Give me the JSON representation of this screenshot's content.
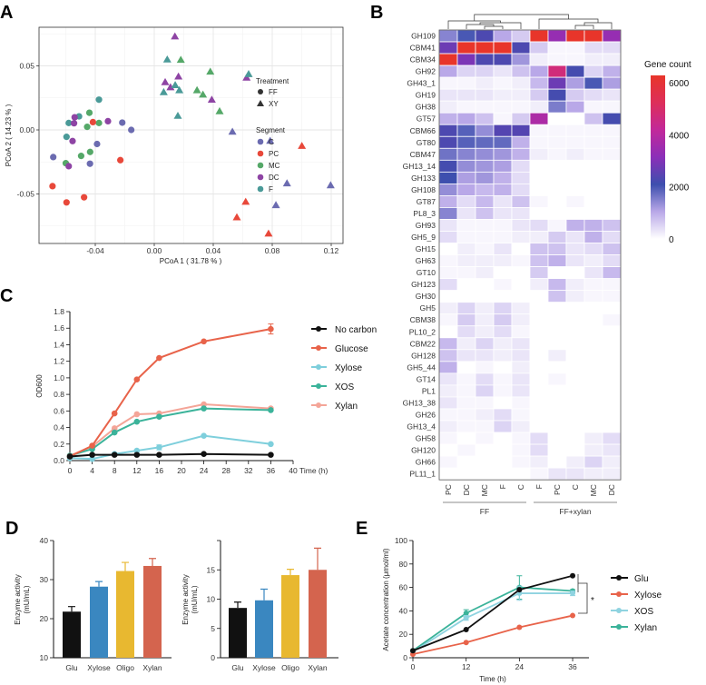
{
  "panel_labels": [
    "A",
    "B",
    "C",
    "D",
    "E"
  ],
  "chart_data": [
    {
      "panel": "A",
      "type": "scatter",
      "xlabel": "PCoA 1 ( 31.78 % )",
      "ylabel": "PCoA 2 ( 14.23 % )",
      "xticks": [
        "-0.04",
        "0.00",
        "0.04",
        "0.08",
        "0.12"
      ],
      "yticks": [
        "-0.05",
        "0.00",
        "0.05"
      ],
      "xlim": [
        -0.075,
        0.128
      ],
      "ylim": [
        -0.088,
        0.08
      ],
      "grid": true,
      "legend_placement": "right",
      "treatment_title": "Treatment",
      "treatments": [
        {
          "name": "FF",
          "shape": "circle"
        },
        {
          "name": "XY",
          "shape": "triangle"
        }
      ],
      "segment_title": "Segment",
      "segments": [
        {
          "name": "C",
          "color": "#6b6bb0"
        },
        {
          "name": "PC",
          "color": "#e8483a"
        },
        {
          "name": "MC",
          "color": "#55a868"
        },
        {
          "name": "DC",
          "color": "#8e44a4"
        },
        {
          "name": "F",
          "color": "#4a9a98"
        }
      ],
      "points": [
        {
          "s": "F",
          "t": "FF",
          "x": -0.0375,
          "y": 0.0236
        },
        {
          "s": "F",
          "t": "FF",
          "x": -0.058,
          "y": 0.0054
        },
        {
          "s": "F",
          "t": "FF",
          "x": -0.051,
          "y": 0.0106
        },
        {
          "s": "F",
          "t": "FF",
          "x": -0.0595,
          "y": -0.0054
        },
        {
          "s": "MC",
          "t": "FF",
          "x": -0.044,
          "y": 0.0134
        },
        {
          "s": "MC",
          "t": "FF",
          "x": -0.0455,
          "y": 0.0024
        },
        {
          "s": "MC",
          "t": "FF",
          "x": -0.0375,
          "y": 0.0054
        },
        {
          "s": "MC",
          "t": "FF",
          "x": -0.0435,
          "y": -0.0172
        },
        {
          "s": "MC",
          "t": "FF",
          "x": -0.0496,
          "y": -0.0203
        },
        {
          "s": "MC",
          "t": "FF",
          "x": -0.06,
          "y": -0.026
        },
        {
          "s": "DC",
          "t": "FF",
          "x": -0.054,
          "y": 0.0099
        },
        {
          "s": "DC",
          "t": "FF",
          "x": -0.0544,
          "y": 0.0052
        },
        {
          "s": "DC",
          "t": "FF",
          "x": -0.0314,
          "y": 0.0068
        },
        {
          "s": "DC",
          "t": "FF",
          "x": -0.0554,
          "y": -0.0087
        },
        {
          "s": "DC",
          "t": "FF",
          "x": -0.058,
          "y": -0.0283
        },
        {
          "s": "C",
          "t": "FF",
          "x": -0.0217,
          "y": 0.0057
        },
        {
          "s": "C",
          "t": "FF",
          "x": -0.0156,
          "y": 0.0
        },
        {
          "s": "C",
          "t": "FF",
          "x": -0.0388,
          "y": -0.011
        },
        {
          "s": "C",
          "t": "FF",
          "x": -0.0436,
          "y": -0.0264
        },
        {
          "s": "C",
          "t": "FF",
          "x": -0.0685,
          "y": -0.0212
        },
        {
          "s": "PC",
          "t": "FF",
          "x": -0.0416,
          "y": 0.0061
        },
        {
          "s": "PC",
          "t": "FF",
          "x": -0.023,
          "y": -0.0236
        },
        {
          "s": "PC",
          "t": "FF",
          "x": -0.069,
          "y": -0.0439
        },
        {
          "s": "PC",
          "t": "FF",
          "x": -0.0595,
          "y": -0.0566
        },
        {
          "s": "PC",
          "t": "FF",
          "x": -0.0476,
          "y": -0.0526
        },
        {
          "s": "DC",
          "t": "XY",
          "x": 0.014,
          "y": 0.073
        },
        {
          "s": "DC",
          "t": "XY",
          "x": 0.0074,
          "y": 0.0373
        },
        {
          "s": "DC",
          "t": "XY",
          "x": 0.011,
          "y": 0.0333
        },
        {
          "s": "DC",
          "t": "XY",
          "x": 0.0164,
          "y": 0.0417
        },
        {
          "s": "DC",
          "t": "XY",
          "x": 0.039,
          "y": 0.0236
        },
        {
          "s": "DC",
          "t": "XY",
          "x": 0.0626,
          "y": 0.0408
        },
        {
          "s": "F",
          "t": "XY",
          "x": 0.0088,
          "y": 0.055
        },
        {
          "s": "F",
          "t": "XY",
          "x": 0.0064,
          "y": 0.0295
        },
        {
          "s": "F",
          "t": "XY",
          "x": 0.0142,
          "y": 0.035
        },
        {
          "s": "F",
          "t": "XY",
          "x": 0.017,
          "y": 0.031
        },
        {
          "s": "F",
          "t": "XY",
          "x": 0.016,
          "y": 0.011
        },
        {
          "s": "F",
          "t": "XY",
          "x": 0.064,
          "y": 0.0436
        },
        {
          "s": "MC",
          "t": "XY",
          "x": 0.018,
          "y": 0.0547
        },
        {
          "s": "MC",
          "t": "XY",
          "x": 0.038,
          "y": 0.0455
        },
        {
          "s": "MC",
          "t": "XY",
          "x": 0.029,
          "y": 0.031
        },
        {
          "s": "MC",
          "t": "XY",
          "x": 0.033,
          "y": 0.0276
        },
        {
          "s": "MC",
          "t": "XY",
          "x": 0.0443,
          "y": 0.0146
        },
        {
          "s": "C",
          "t": "XY",
          "x": 0.053,
          "y": -0.0014
        },
        {
          "s": "C",
          "t": "XY",
          "x": 0.0786,
          "y": -0.0085
        },
        {
          "s": "C",
          "t": "XY",
          "x": 0.09,
          "y": -0.0417
        },
        {
          "s": "C",
          "t": "XY",
          "x": 0.0825,
          "y": -0.0587
        },
        {
          "s": "C",
          "t": "XY",
          "x": 0.1196,
          "y": -0.0432
        },
        {
          "s": "PC",
          "t": "XY",
          "x": 0.1001,
          "y": -0.0125
        },
        {
          "s": "PC",
          "t": "XY",
          "x": 0.062,
          "y": -0.0561
        },
        {
          "s": "PC",
          "t": "XY",
          "x": 0.056,
          "y": -0.0682
        },
        {
          "s": "PC",
          "t": "XY",
          "x": 0.0775,
          "y": -0.0809
        }
      ]
    },
    {
      "panel": "B",
      "type": "heatmap",
      "colorbar_title": "Gene count",
      "colorbar_ticks": [
        "6000",
        "4000",
        "2000",
        "0"
      ],
      "colorscale": [
        [
          0,
          "#ffffff"
        ],
        [
          1000,
          "#b9a8e8"
        ],
        [
          2000,
          "#3d4fae"
        ],
        [
          3000,
          "#8b2fb8"
        ],
        [
          4000,
          "#c2289a"
        ],
        [
          5000,
          "#dd2f5a"
        ],
        [
          6000,
          "#e8352a"
        ]
      ],
      "columns": [
        "PC",
        "DC",
        "MC",
        "F",
        "C",
        "F",
        "PC",
        "C",
        "MC",
        "DC"
      ],
      "groups": [
        {
          "label": "FF",
          "span": 5
        },
        {
          "label": "FF+xylan",
          "span": 5
        }
      ],
      "rows": [
        "GH109",
        "CBM41",
        "CBM34",
        "GH92",
        "GH43_1",
        "GH19",
        "GH38",
        "GT57",
        "CBM66",
        "GT80",
        "CBM47",
        "GH13_14",
        "GH133",
        "GH108",
        "GT87",
        "PL8_3",
        "GH93",
        "GH5_9",
        "GH15",
        "GH63",
        "GT10",
        "GH123",
        "GH30",
        "GH5",
        "CBM38",
        "PL10_2",
        "CBM22",
        "GH128",
        "GH5_44",
        "GT14",
        "PL1",
        "GH13_38",
        "GH26",
        "GH13_4",
        "GH58",
        "GH120",
        "GH66",
        "PL11_1"
      ],
      "values": [
        [
          1400,
          1900,
          2200,
          1000,
          600,
          6000,
          3200,
          6000,
          6000,
          3200
        ],
        [
          2600,
          6000,
          6000,
          6000,
          2200,
          600,
          100,
          100,
          400,
          400
        ],
        [
          6000,
          2800,
          2200,
          2200,
          1200,
          200,
          100,
          100,
          200,
          200
        ],
        [
          1000,
          500,
          500,
          300,
          700,
          1000,
          4500,
          2100,
          500,
          900
        ],
        [
          100,
          100,
          200,
          100,
          200,
          800,
          2600,
          1100,
          1900,
          1100
        ],
        [
          300,
          300,
          300,
          200,
          200,
          600,
          2100,
          600,
          400,
          300
        ],
        [
          200,
          100,
          100,
          100,
          100,
          200,
          1500,
          1000,
          100,
          100
        ],
        [
          900,
          1000,
          700,
          100,
          600,
          3600,
          0,
          0,
          700,
          2100
        ],
        [
          2200,
          1800,
          1300,
          2300,
          2300,
          100,
          100,
          100,
          100,
          100
        ],
        [
          2200,
          1800,
          1700,
          1700,
          900,
          100,
          100,
          100,
          100,
          100
        ],
        [
          1600,
          1400,
          1300,
          1200,
          900,
          200,
          100,
          200,
          100,
          100
        ],
        [
          2100,
          1300,
          1200,
          1100,
          400,
          0,
          0,
          0,
          0,
          0
        ],
        [
          2000,
          1100,
          1200,
          900,
          400,
          0,
          0,
          0,
          0,
          0
        ],
        [
          1300,
          1000,
          800,
          900,
          400,
          0,
          0,
          0,
          0,
          0
        ],
        [
          900,
          400,
          800,
          300,
          700,
          100,
          0,
          100,
          0,
          0
        ],
        [
          1400,
          300,
          700,
          300,
          300,
          0,
          0,
          0,
          0,
          0
        ],
        [
          300,
          100,
          100,
          100,
          300,
          400,
          100,
          900,
          900,
          700
        ],
        [
          400,
          100,
          100,
          100,
          200,
          200,
          600,
          300,
          900,
          400
        ],
        [
          0,
          200,
          100,
          300,
          0,
          700,
          700,
          300,
          400,
          700
        ],
        [
          100,
          200,
          200,
          200,
          100,
          700,
          900,
          300,
          200,
          400
        ],
        [
          100,
          100,
          200,
          0,
          0,
          600,
          0,
          0,
          300,
          800
        ],
        [
          400,
          0,
          0,
          100,
          0,
          200,
          800,
          200,
          100,
          100
        ],
        [
          0,
          0,
          0,
          0,
          0,
          0,
          700,
          200,
          100,
          100
        ],
        [
          200,
          500,
          200,
          500,
          200,
          0,
          0,
          0,
          0,
          0
        ],
        [
          100,
          600,
          200,
          600,
          200,
          0,
          0,
          0,
          0,
          100
        ],
        [
          0,
          400,
          200,
          400,
          100,
          0,
          0,
          0,
          0,
          0
        ],
        [
          800,
          200,
          500,
          200,
          300,
          0,
          0,
          0,
          0,
          0
        ],
        [
          700,
          300,
          300,
          200,
          300,
          0,
          200,
          0,
          0,
          0
        ],
        [
          900,
          0,
          100,
          0,
          200,
          0,
          0,
          0,
          0,
          0
        ],
        [
          300,
          100,
          400,
          100,
          300,
          0,
          100,
          0,
          0,
          0
        ],
        [
          200,
          100,
          500,
          100,
          300,
          0,
          0,
          0,
          0,
          0
        ],
        [
          300,
          100,
          100,
          0,
          100,
          0,
          0,
          0,
          0,
          0
        ],
        [
          100,
          100,
          200,
          400,
          100,
          0,
          0,
          0,
          0,
          0
        ],
        [
          200,
          100,
          100,
          500,
          200,
          0,
          0,
          0,
          0,
          0
        ],
        [
          100,
          0,
          100,
          0,
          100,
          400,
          0,
          0,
          200,
          400
        ],
        [
          0,
          100,
          0,
          0,
          100,
          400,
          0,
          0,
          200,
          300
        ],
        [
          100,
          0,
          0,
          0,
          100,
          200,
          0,
          200,
          500,
          200
        ],
        [
          0,
          0,
          0,
          0,
          0,
          100,
          300,
          300,
          200,
          200
        ]
      ]
    },
    {
      "panel": "C",
      "type": "line",
      "xlabel": "Time (h)",
      "ylabel": "OD600",
      "xlim": [
        0,
        40
      ],
      "ylim": [
        0,
        1.8
      ],
      "xticks": [
        "0",
        "4",
        "8",
        "12",
        "16",
        "20",
        "24",
        "28",
        "32",
        "36",
        "40"
      ],
      "yticks": [
        "0.0",
        "0.2",
        "0.4",
        "0.6",
        "0.8",
        "1.0",
        "1.2",
        "1.4",
        "1.6",
        "1.8"
      ],
      "x": [
        0,
        4,
        8,
        12,
        16,
        24,
        36
      ],
      "legend_placement": "right",
      "series": [
        {
          "name": "No carbon",
          "color": "#111111",
          "values": [
            0.05,
            0.07,
            0.07,
            0.07,
            0.07,
            0.08,
            0.07
          ]
        },
        {
          "name": "Glucose",
          "color": "#e8634a",
          "values": [
            0.05,
            0.18,
            0.57,
            0.98,
            1.24,
            1.44,
            1.59
          ],
          "error": [
            0,
            0,
            0,
            0,
            0,
            0,
            0.06
          ]
        },
        {
          "name": "Xylose",
          "color": "#7ecfdc",
          "values": [
            0.03,
            0.02,
            0.08,
            0.12,
            0.16,
            0.3,
            0.2
          ],
          "error": [
            0,
            0,
            0,
            0,
            0.03,
            0,
            0
          ]
        },
        {
          "name": "XOS",
          "color": "#3bb39a",
          "values": [
            0.06,
            0.14,
            0.34,
            0.47,
            0.53,
            0.63,
            0.61
          ]
        },
        {
          "name": "Xylan",
          "color": "#f4a598",
          "values": [
            0.06,
            0.17,
            0.39,
            0.56,
            0.57,
            0.68,
            0.63
          ]
        }
      ]
    },
    {
      "panel": "D",
      "type": "bar",
      "ylabel": [
        "Enzyme activity",
        "(mU/mL)"
      ],
      "ylim": [
        10,
        40
      ],
      "yticks": [
        "10",
        "20",
        "30",
        "40"
      ],
      "categories": [
        "Glu",
        "Xylose",
        "Oligo",
        "Xylan"
      ],
      "colors": [
        "#111111",
        "#3a87c0",
        "#e8b830",
        "#d4644e"
      ],
      "values": [
        21.8,
        28.2,
        32.2,
        33.5
      ],
      "error": [
        1.3,
        1.3,
        2.2,
        1.9
      ]
    },
    {
      "panel": "D",
      "type": "bar",
      "ylabel": [
        "Enzyme activity",
        "(mU/mL)"
      ],
      "ylim": [
        0,
        20
      ],
      "yticks": [
        "0",
        "5",
        "10",
        "15",
        ""
      ],
      "categories": [
        "Glu",
        "Xylose",
        "Oligo",
        "Xylan"
      ],
      "colors": [
        "#111111",
        "#3a87c0",
        "#e8b830",
        "#d4644e"
      ],
      "values": [
        8.5,
        9.8,
        14.1,
        15.0
      ],
      "error": [
        1.0,
        1.9,
        1.0,
        3.7
      ]
    },
    {
      "panel": "E",
      "type": "line",
      "xlabel": "Time (h)",
      "ylabel": "Acetate concentration (μmol/ml)",
      "xlim": [
        0,
        36
      ],
      "ylim": [
        0,
        100
      ],
      "xticks": [
        "0",
        "12",
        "24",
        "36"
      ],
      "yticks": [
        "0",
        "20",
        "40",
        "60",
        "80",
        "100"
      ],
      "x": [
        0,
        12,
        24,
        36
      ],
      "legend_placement": "right",
      "significance": "*",
      "series": [
        {
          "name": "Glu",
          "color": "#111111",
          "values": [
            6,
            24,
            58,
            70
          ]
        },
        {
          "name": "Xylose",
          "color": "#e8634a",
          "values": [
            3,
            13,
            26,
            36
          ]
        },
        {
          "name": "XOS",
          "color": "#8fd3e0",
          "values": [
            5,
            34,
            55,
            55
          ],
          "error": [
            0,
            2,
            6,
            2
          ]
        },
        {
          "name": "Xylan",
          "color": "#3bb39a",
          "values": [
            6,
            38,
            60,
            57
          ],
          "error": [
            0,
            3,
            10,
            1
          ]
        }
      ]
    }
  ]
}
